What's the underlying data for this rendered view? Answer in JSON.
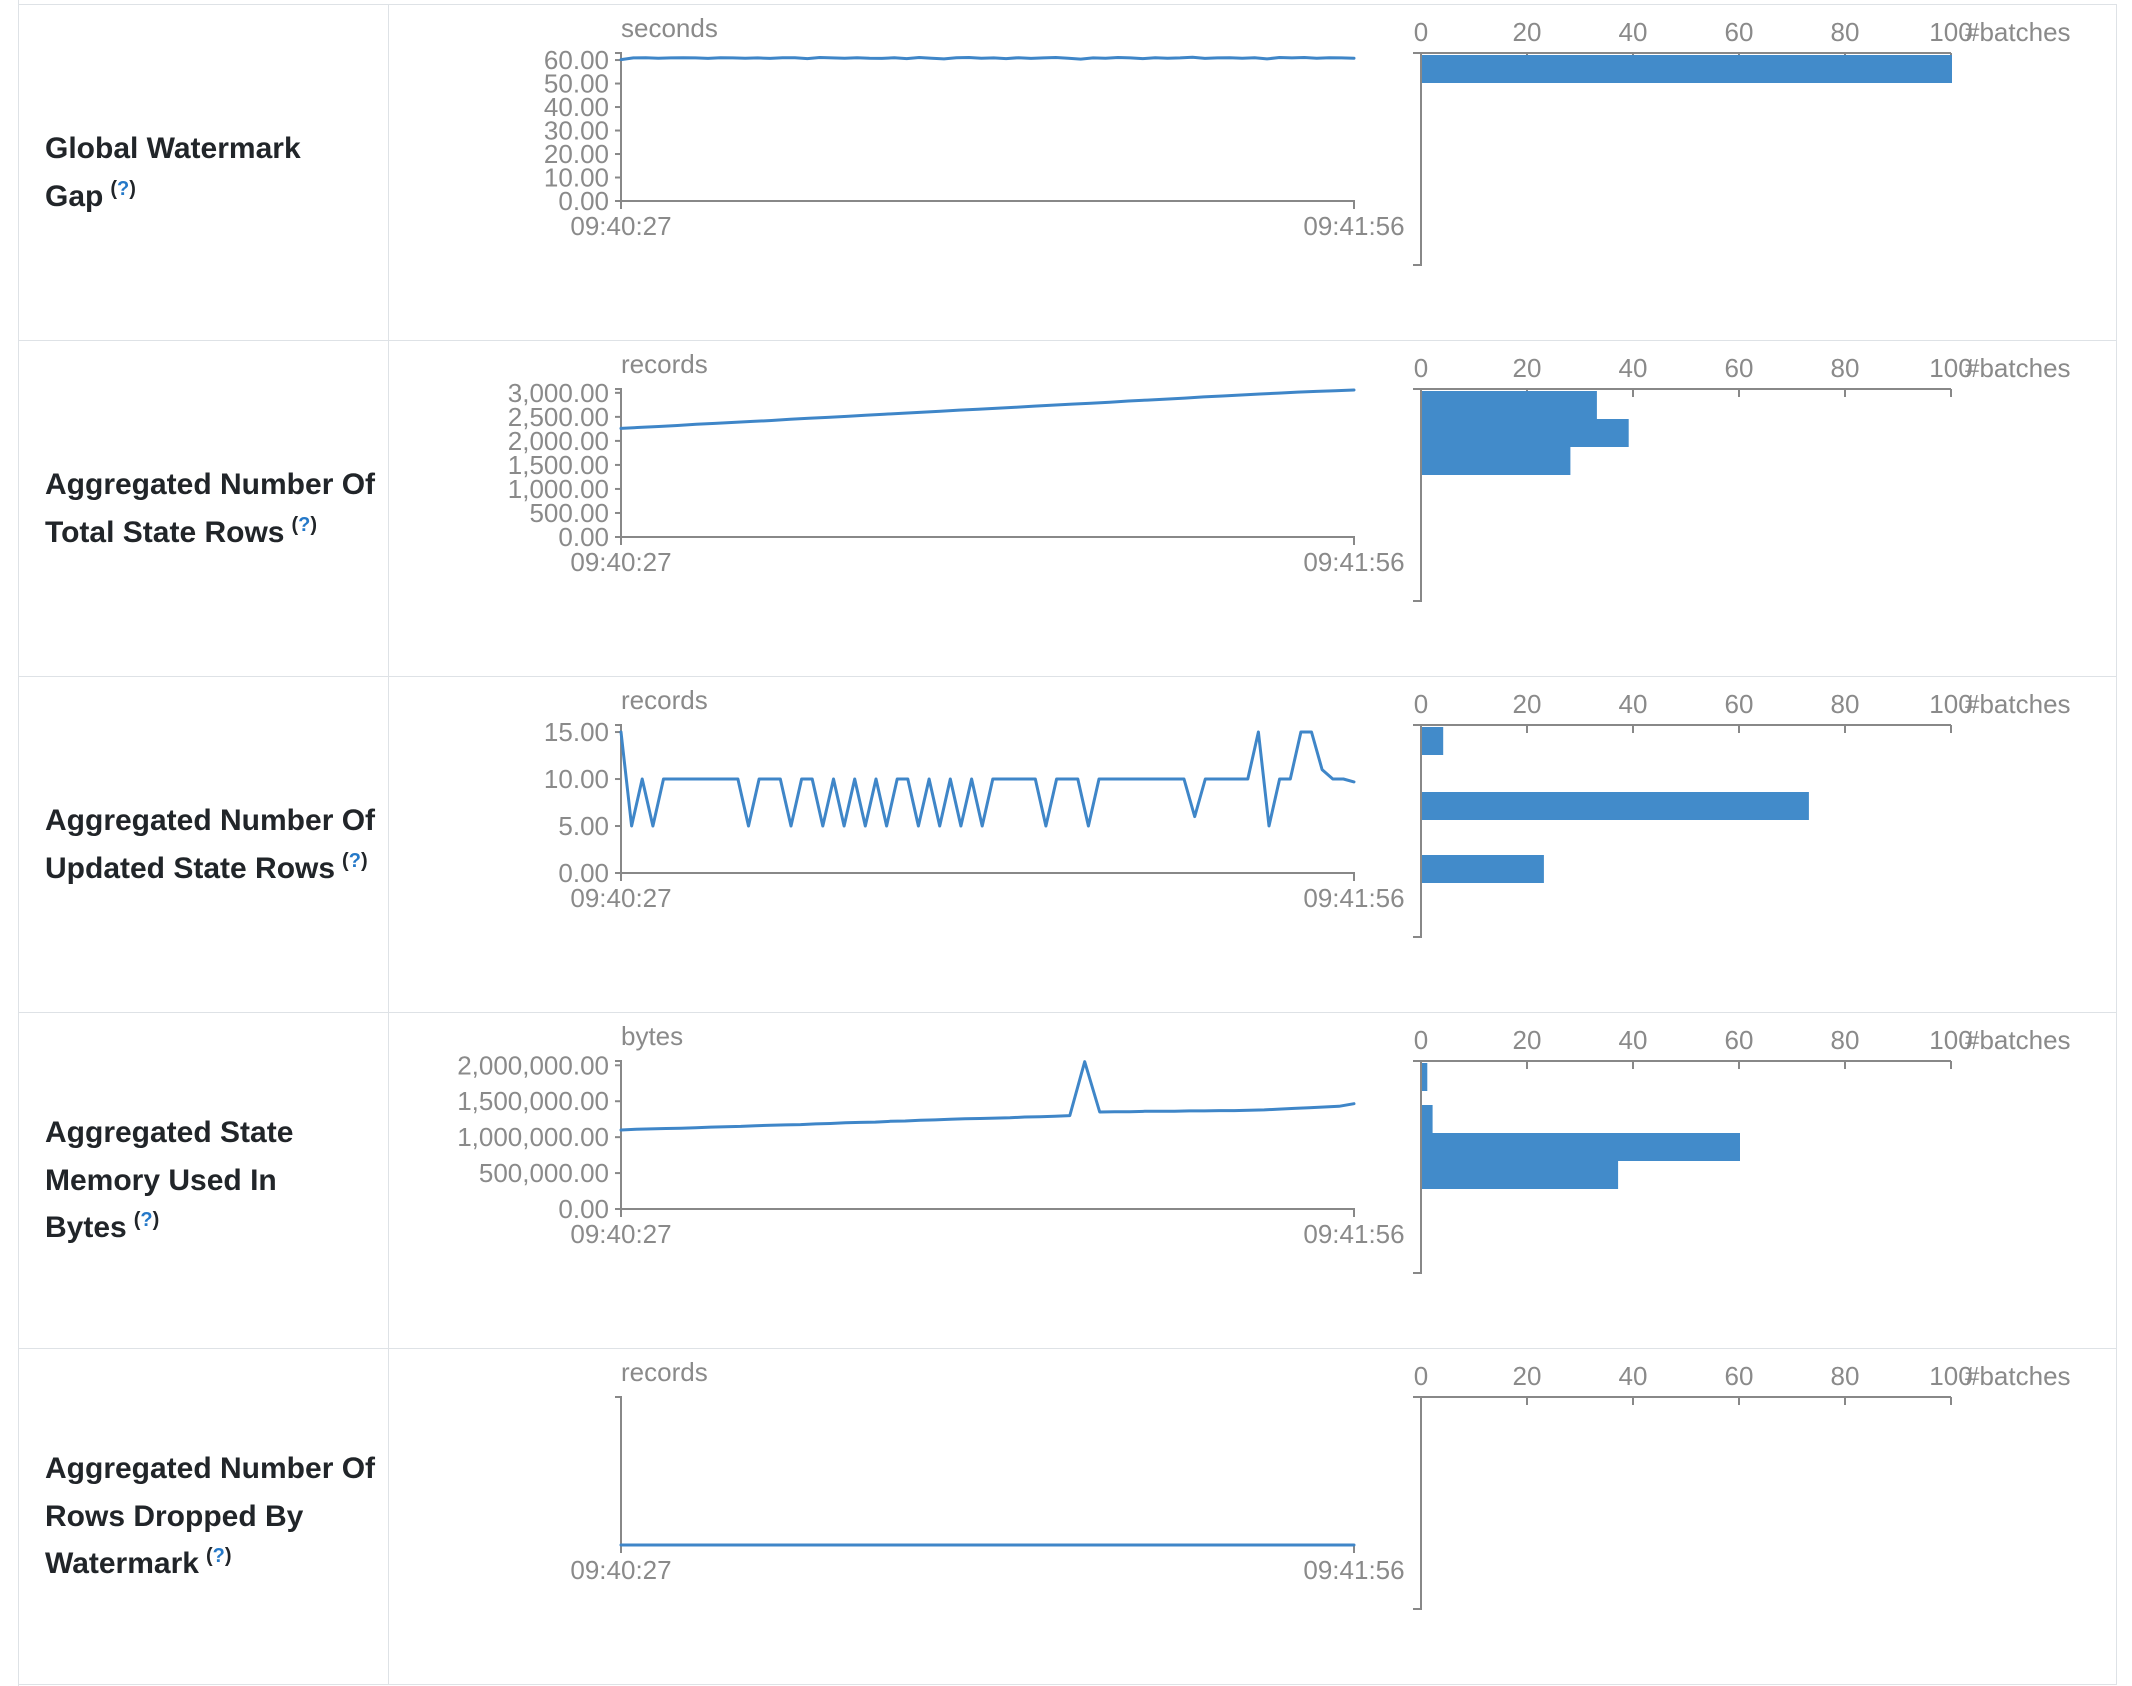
{
  "palette": {
    "bar_fill": "#428bca",
    "line_stroke": "#3f86c8",
    "axis_stroke": "#888888",
    "tick_text": "#8a8a8a",
    "label_text": "#212529",
    "help_link": "#2478c8",
    "border": "#dee2e6"
  },
  "time_axis": {
    "start": "09:40:27",
    "end": "09:41:56"
  },
  "histogram_axis": {
    "label": "#batches",
    "max": 100,
    "tick_values": [
      0,
      20,
      40,
      60,
      80,
      100
    ],
    "tick_labels": [
      "0",
      "20",
      "40",
      "60",
      "80",
      "100"
    ]
  },
  "rows": [
    {
      "label": "Global Watermark Gap",
      "help": {
        "open": "(",
        "q": "?",
        "close": ")"
      },
      "unit": "seconds",
      "chart_type": "line",
      "y_axis": {
        "domain_max": 63,
        "tick_values": [
          60,
          50,
          40,
          30,
          20,
          10,
          0
        ],
        "tick_labels": [
          "60.00",
          "50.00",
          "40.00",
          "30.00",
          "20.00",
          "10.00",
          "0.00"
        ]
      },
      "timeline": [
        60.2,
        60.9,
        61.0,
        60.8,
        60.9,
        61.0,
        60.9,
        60.7,
        61.0,
        60.9,
        60.8,
        60.9,
        60.7,
        61.0,
        61.0,
        60.6,
        61.1,
        60.9,
        60.8,
        61.0,
        60.8,
        60.7,
        61.0,
        60.6,
        61.1,
        60.8,
        60.5,
        61.0,
        61.1,
        60.8,
        60.9,
        60.6,
        61.0,
        60.7,
        60.9,
        61.1,
        60.8,
        60.4,
        60.9,
        60.8,
        61.1,
        60.9,
        60.6,
        61.0,
        60.8,
        60.9,
        61.2,
        60.7,
        60.9,
        61.0,
        60.8,
        61.0,
        60.5,
        61.1,
        60.9,
        61.1,
        60.8,
        61.0,
        60.9,
        60.8
      ],
      "histogram": [
        {
          "value": 100,
          "offset": 2
        }
      ]
    },
    {
      "label": "Aggregated Number Of Total State Rows",
      "help": {
        "open": "(",
        "q": "?",
        "close": ")"
      },
      "unit": "records",
      "chart_type": "line",
      "y_axis": {
        "domain_max": 3080,
        "tick_values": [
          3000,
          2500,
          2000,
          1500,
          1000,
          500,
          0
        ],
        "tick_labels": [
          "3,000.00",
          "2,500.00",
          "2,000.00",
          "1,500.00",
          "1,000.00",
          "500.00",
          "0.00"
        ]
      },
      "timeline": [
        2260,
        2280,
        2300,
        2320,
        2345,
        2365,
        2385,
        2405,
        2425,
        2450,
        2470,
        2490,
        2510,
        2535,
        2555,
        2575,
        2595,
        2615,
        2640,
        2660,
        2680,
        2700,
        2725,
        2745,
        2765,
        2785,
        2805,
        2830,
        2850,
        2870,
        2890,
        2915,
        2935,
        2955,
        2975,
        2995,
        3015,
        3030,
        3045,
        3060
      ],
      "histogram": [
        {
          "value": 33,
          "offset": 2
        },
        {
          "value": 39,
          "offset": 30
        },
        {
          "value": 28,
          "offset": 58
        }
      ]
    },
    {
      "label": "Aggregated Number Of Updated State Rows",
      "help": {
        "open": "(",
        "q": "?",
        "close": ")"
      },
      "unit": "records",
      "chart_type": "line",
      "y_axis": {
        "domain_max": 15.75,
        "tick_values": [
          15,
          10,
          5,
          0
        ],
        "tick_labels": [
          "15.00",
          "10.00",
          "5.00",
          "0.00"
        ]
      },
      "timeline": [
        15,
        5,
        10,
        5,
        10,
        10,
        10,
        10,
        10,
        10,
        10,
        10,
        5,
        10,
        10,
        10,
        5,
        10,
        10,
        5,
        10,
        5,
        10,
        5,
        10,
        5,
        10,
        10,
        5,
        10,
        5,
        10,
        5,
        10,
        5,
        10,
        10,
        10,
        10,
        10,
        5,
        10,
        10,
        10,
        5,
        10,
        10,
        10,
        10,
        10,
        10,
        10,
        10,
        10,
        6,
        10,
        10,
        10,
        10,
        10,
        15,
        5,
        10,
        10,
        15,
        15,
        11,
        10,
        10,
        9.7
      ],
      "histogram": [
        {
          "value": 4,
          "offset": 2
        },
        {
          "value": 73,
          "offset": 67
        },
        {
          "value": 23,
          "offset": 130
        }
      ]
    },
    {
      "label": "Aggregated State Memory Used In Bytes",
      "help": {
        "open": "(",
        "q": "?",
        "close": ")"
      },
      "unit": "bytes",
      "chart_type": "line",
      "y_axis": {
        "domain_max": 2060000,
        "tick_values": [
          2000000,
          1500000,
          1000000,
          500000,
          0
        ],
        "tick_labels": [
          "2,000,000.00",
          "1,500,000.00",
          "1,000,000.00",
          "500,000.00",
          "0.00"
        ]
      },
      "timeline": [
        1100000,
        1110000,
        1115000,
        1120000,
        1125000,
        1130000,
        1140000,
        1145000,
        1150000,
        1160000,
        1165000,
        1170000,
        1175000,
        1185000,
        1190000,
        1200000,
        1205000,
        1210000,
        1220000,
        1225000,
        1235000,
        1240000,
        1250000,
        1255000,
        1260000,
        1265000,
        1270000,
        1280000,
        1285000,
        1290000,
        1300000,
        2050000,
        1350000,
        1355000,
        1355000,
        1360000,
        1360000,
        1360000,
        1365000,
        1365000,
        1370000,
        1370000,
        1375000,
        1380000,
        1390000,
        1400000,
        1410000,
        1420000,
        1430000,
        1465000
      ],
      "histogram": [
        {
          "value": 1,
          "offset": 2
        },
        {
          "value": 2,
          "offset": 44
        },
        {
          "value": 60,
          "offset": 72
        },
        {
          "value": 37,
          "offset": 100
        }
      ]
    },
    {
      "label": "Aggregated Number Of Rows Dropped By Watermark",
      "help": {
        "open": "(",
        "q": "?",
        "close": ")"
      },
      "unit": "records",
      "chart_type": "line",
      "y_axis": {
        "domain_max": 1,
        "tick_values": [],
        "tick_labels": []
      },
      "timeline": [
        0,
        0,
        0,
        0,
        0,
        0,
        0,
        0,
        0,
        0
      ],
      "histogram": []
    }
  ]
}
